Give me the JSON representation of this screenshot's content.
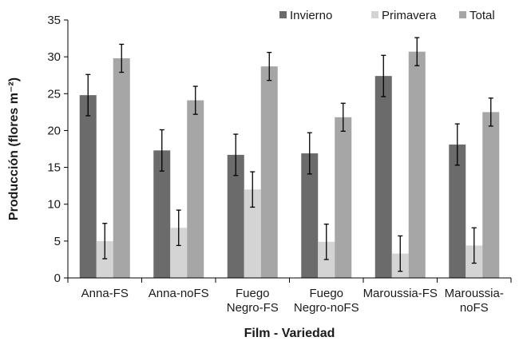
{
  "chart_data": {
    "type": "bar",
    "xlabel": "Film - Variedad",
    "ylabel": "Producción (flores m⁻²)",
    "ylim": [
      0,
      35
    ],
    "yticks": [
      0,
      5,
      10,
      15,
      20,
      25,
      30,
      35
    ],
    "categories": [
      [
        "Anna-FS"
      ],
      [
        "Anna-noFS"
      ],
      [
        "Fuego",
        "Negro-FS"
      ],
      [
        "Fuego",
        "Negro-noFS"
      ],
      [
        "Maroussia-FS"
      ],
      [
        "Maroussia-",
        "noFS"
      ]
    ],
    "legend_position": "top-right",
    "grid": false,
    "error_bars": true,
    "series": [
      {
        "name": "Invierno",
        "color": "#6b6b6b",
        "values": [
          24.8,
          17.3,
          16.7,
          16.9,
          27.4,
          18.1
        ],
        "errors": [
          2.8,
          2.8,
          2.8,
          2.8,
          2.8,
          2.8
        ]
      },
      {
        "name": "Primavera",
        "color": "#d4d4d4",
        "values": [
          5.0,
          6.8,
          12.0,
          4.9,
          3.3,
          4.4
        ],
        "errors": [
          2.4,
          2.4,
          2.4,
          2.4,
          2.4,
          2.4
        ]
      },
      {
        "name": "Total",
        "color": "#a6a6a6",
        "values": [
          29.8,
          24.1,
          28.7,
          21.8,
          30.7,
          22.5
        ],
        "errors": [
          1.9,
          1.9,
          1.9,
          1.9,
          1.9,
          1.9
        ]
      }
    ]
  }
}
